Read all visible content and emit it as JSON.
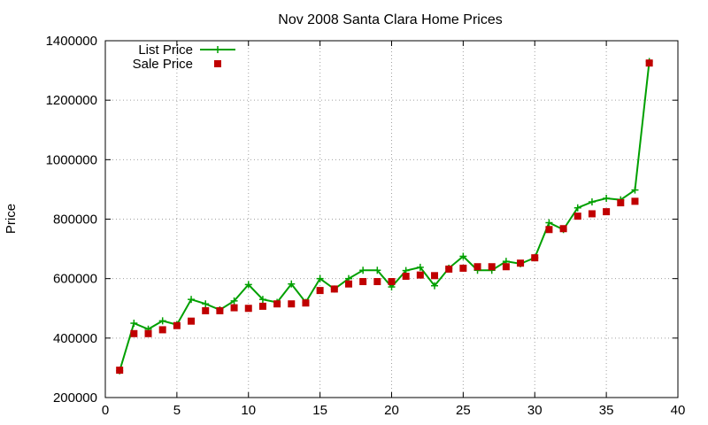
{
  "chart_data": {
    "type": "line",
    "title": "Nov 2008 Santa Clara Home Prices",
    "xlabel": "",
    "ylabel": "Price",
    "xlim": [
      0,
      40
    ],
    "ylim": [
      200000,
      1400000
    ],
    "xticks": [
      0,
      5,
      10,
      15,
      20,
      25,
      30,
      35,
      40
    ],
    "yticks": [
      200000,
      400000,
      600000,
      800000,
      1000000,
      1200000,
      1400000
    ],
    "grid": true,
    "legend_position": "top-left",
    "series": [
      {
        "name": "List Price",
        "style": "line-points",
        "color": "#00a000",
        "x": [
          1,
          2,
          3,
          4,
          5,
          6,
          7,
          8,
          9,
          10,
          11,
          12,
          13,
          14,
          15,
          16,
          17,
          18,
          19,
          20,
          21,
          22,
          23,
          24,
          25,
          26,
          27,
          28,
          29,
          30,
          31,
          32,
          33,
          34,
          35,
          36,
          37,
          38
        ],
        "y": [
          290000,
          450000,
          430000,
          458000,
          445000,
          530000,
          515000,
          495000,
          525000,
          580000,
          530000,
          520000,
          582000,
          520000,
          600000,
          565000,
          600000,
          628000,
          628000,
          572000,
          627000,
          638000,
          576000,
          635000,
          675000,
          628000,
          628000,
          658000,
          650000,
          670000,
          788000,
          765000,
          838000,
          858000,
          870000,
          865000,
          898000,
          1330000
        ]
      },
      {
        "name": "Sale Price",
        "style": "points",
        "color": "#c00000",
        "x": [
          1,
          2,
          3,
          4,
          5,
          6,
          7,
          8,
          9,
          10,
          11,
          12,
          13,
          14,
          15,
          16,
          17,
          18,
          19,
          20,
          21,
          22,
          23,
          24,
          25,
          26,
          27,
          28,
          29,
          30,
          31,
          32,
          33,
          34,
          35,
          36,
          37,
          38
        ],
        "y": [
          292000,
          415000,
          415000,
          428000,
          442000,
          457000,
          492000,
          492000,
          502000,
          500000,
          507000,
          515000,
          515000,
          518000,
          560000,
          565000,
          582000,
          590000,
          590000,
          590000,
          608000,
          612000,
          610000,
          632000,
          635000,
          640000,
          640000,
          640000,
          652000,
          670000,
          765000,
          768000,
          810000,
          818000,
          825000,
          855000,
          860000,
          1325000
        ]
      }
    ]
  }
}
